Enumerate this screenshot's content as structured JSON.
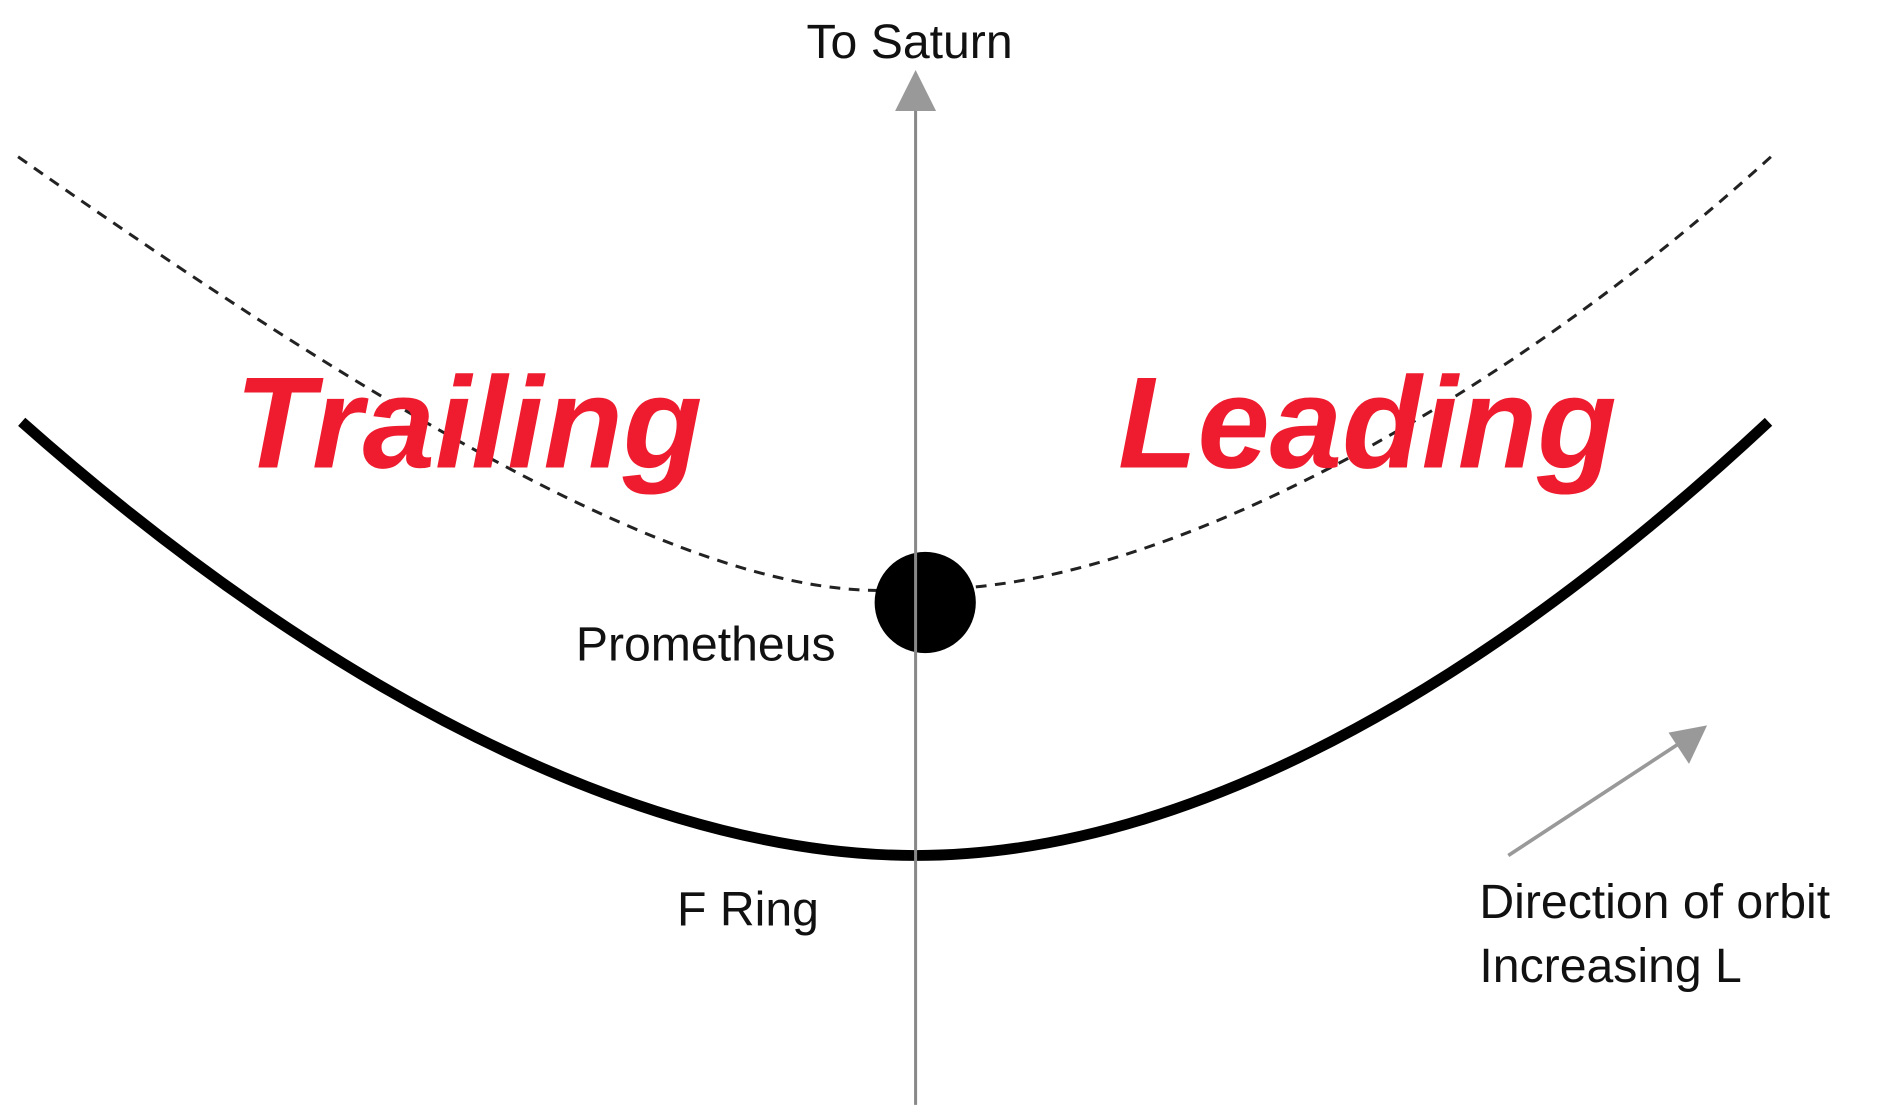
{
  "labels": {
    "direction": "To Saturn",
    "trailing": "Trailing",
    "leading": "Leading",
    "moon": "Prometheus",
    "ring": "F Ring",
    "orbit_direction": "Direction of orbit",
    "orbit_increasing": "Increasing L"
  }
}
